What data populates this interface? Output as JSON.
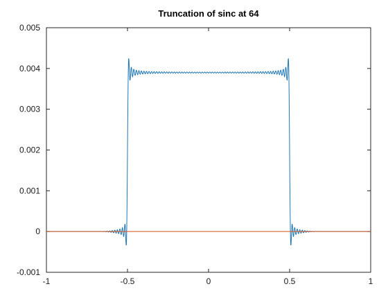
{
  "chart_data": {
    "type": "line",
    "title": "Truncation of sinc at 64",
    "xlabel": "",
    "ylabel": "",
    "xlim": [
      -1,
      1
    ],
    "ylim": [
      -0.001,
      0.005
    ],
    "xticks": [
      -1,
      -0.5,
      0,
      0.5,
      1
    ],
    "yticks": [
      -0.001,
      0,
      0.001,
      0.002,
      0.003,
      0.004,
      0.005
    ],
    "xtick_labels": [
      "-1",
      "-0.5",
      "0",
      "0.5",
      "1"
    ],
    "ytick_labels": [
      "-0.001",
      "0",
      "0.001",
      "0.002",
      "0.003",
      "0.004",
      "0.005"
    ],
    "grid": false,
    "legend": "none",
    "series": [
      {
        "color": "#1f77b4",
        "shape": "truncated-sinc-spectrum",
        "plateau_value": 0.0039,
        "edges": [
          -0.5,
          0.5
        ],
        "edge_overshoot_max": 0.00425,
        "edge_undershoot_min": -0.00035,
        "ripple_amplitude": 6e-05,
        "outside_value": 0
      },
      {
        "color": "#d95319",
        "shape": "constant",
        "x": [
          -1,
          1
        ],
        "y": [
          0,
          0
        ]
      }
    ]
  }
}
